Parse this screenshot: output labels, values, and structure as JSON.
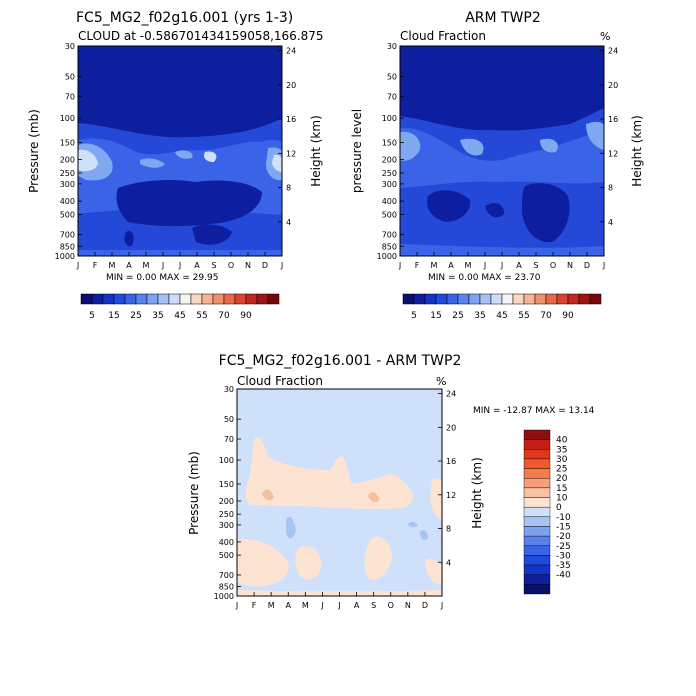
{
  "colors": {
    "deep_blue": "#0d1f9e",
    "mid_blue": "#1a3fd0",
    "blue": "#3a63e8",
    "light_blue": "#7fa8f0",
    "pale_blue": "#cfe0fa",
    "pale_peach": "#fde4d2",
    "peach": "#f5c0a0",
    "diff_blue": "#a8c4f4"
  },
  "chart_data": [
    {
      "id": "panel-model",
      "type": "contour",
      "title": "FC5_MG2_f02g16.001 (yrs 1-3)",
      "subtitle": "CLOUD at -0.586701434159058,166.875",
      "ylabel_left": "Pressure (mb)",
      "ylabel_right": "Height (km)",
      "months": [
        "J",
        "F",
        "M",
        "A",
        "M",
        "J",
        "J",
        "A",
        "S",
        "O",
        "N",
        "D",
        "J"
      ],
      "pressure_ticks": [
        "30",
        "50",
        "70",
        "100",
        "150",
        "200",
        "250",
        "300",
        "400",
        "500",
        "700",
        "850",
        "1000"
      ],
      "height_ticks": [
        "24",
        "20",
        "16",
        "12",
        "8",
        "4"
      ],
      "stats": "MIN =    0.00 MAX =   29.95",
      "min": 0.0,
      "max": 29.95
    },
    {
      "id": "panel-obs",
      "type": "contour",
      "title": "ARM TWP2",
      "subtitle": "Cloud Fraction",
      "units": "%",
      "ylabel_left": "pressure level",
      "ylabel_right": "Height (km)",
      "months": [
        "J",
        "F",
        "M",
        "A",
        "M",
        "J",
        "J",
        "A",
        "S",
        "O",
        "N",
        "D",
        "J"
      ],
      "pressure_ticks": [
        "30",
        "50",
        "70",
        "100",
        "150",
        "200",
        "250",
        "300",
        "400",
        "500",
        "700",
        "850",
        "1000"
      ],
      "height_ticks": [
        "24",
        "20",
        "16",
        "12",
        "8",
        "4"
      ],
      "stats": "MIN =    0.00 MAX =   23.70",
      "min": 0.0,
      "max": 23.7
    },
    {
      "id": "panel-diff",
      "type": "contour",
      "title": "FC5_MG2_f02g16.001 - ARM TWP2",
      "subtitle": "Cloud Fraction",
      "units": "%",
      "ylabel_left": "Pressure (mb)",
      "ylabel_right": "Height (km)",
      "months": [
        "J",
        "F",
        "M",
        "A",
        "M",
        "J",
        "J",
        "A",
        "S",
        "O",
        "N",
        "D",
        "J"
      ],
      "pressure_ticks": [
        "30",
        "50",
        "70",
        "100",
        "150",
        "200",
        "250",
        "300",
        "400",
        "500",
        "700",
        "850",
        "1000"
      ],
      "height_ticks": [
        "24",
        "20",
        "16",
        "12",
        "8",
        "4"
      ],
      "stats": "MIN = -12.87 MAX =  13.14",
      "min": -12.87,
      "max": 13.14
    }
  ],
  "colorbars": {
    "top": {
      "labels": [
        "5",
        "15",
        "25",
        "35",
        "45",
        "55",
        "70",
        "90"
      ],
      "colors": [
        "#08116e",
        "#0d1f9e",
        "#1533c4",
        "#1f4be0",
        "#3a63e8",
        "#5b82ee",
        "#7fa2f2",
        "#a6c0f6",
        "#cfdcf9",
        "#f5f5f5",
        "#fbd6c2",
        "#f5b496",
        "#f0906c",
        "#e86a4a",
        "#d84530",
        "#c0271e",
        "#9c1414",
        "#780808"
      ]
    },
    "diff": {
      "labels": [
        "40",
        "35",
        "30",
        "25",
        "20",
        "15",
        "10",
        "0",
        "-10",
        "-15",
        "-20",
        "-25",
        "-30",
        "-35",
        "-40"
      ],
      "colors": [
        "#8c0e0e",
        "#c41e16",
        "#e0361c",
        "#f0592a",
        "#f37c4a",
        "#f5a07a",
        "#f8c2a4",
        "#fde4d2",
        "#cfe0fa",
        "#a8c4f4",
        "#7fa2f0",
        "#5b82ec",
        "#3a63e6",
        "#1f4bdc",
        "#1533c4",
        "#0d1f9e",
        "#08116e"
      ]
    }
  }
}
